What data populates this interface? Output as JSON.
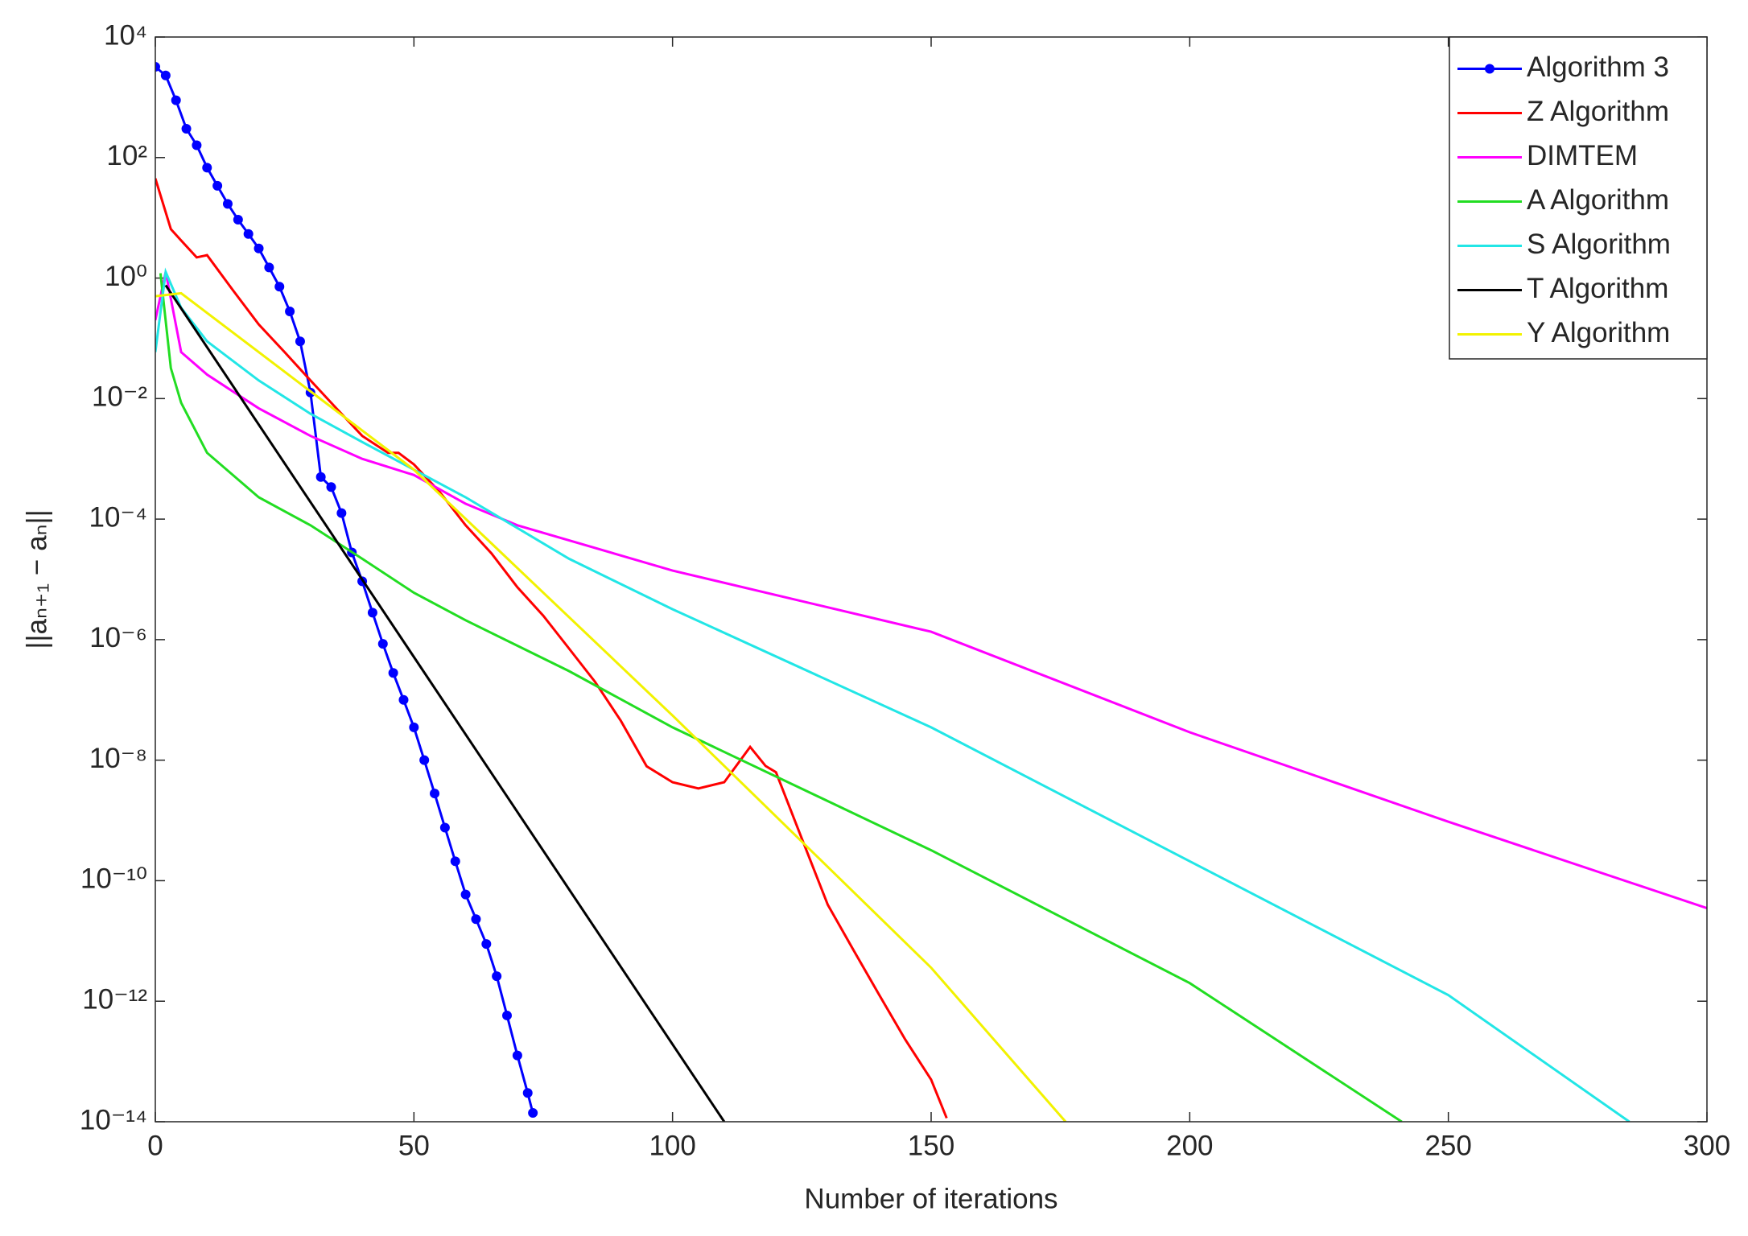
{
  "chart_data": {
    "type": "line",
    "xlabel": "Number of iterations",
    "ylabel": "||aₙ₊₁ − aₙ||",
    "xlim": [
      0,
      300
    ],
    "xticks": [
      0,
      50,
      100,
      150,
      200,
      250,
      300
    ],
    "ylim": [
      1e-14,
      10000.0
    ],
    "ylog": true,
    "yticks": [
      {
        "value": 10000.0,
        "label": "10⁴"
      },
      {
        "value": 100.0,
        "label": "10²"
      },
      {
        "value": 1,
        "label": "10⁰"
      },
      {
        "value": 0.01,
        "label": "10⁻²"
      },
      {
        "value": 0.0001,
        "label": "10⁻⁴"
      },
      {
        "value": 1e-06,
        "label": "10⁻⁶"
      },
      {
        "value": 1e-08,
        "label": "10⁻⁸"
      },
      {
        "value": 1e-10,
        "label": "10⁻¹⁰"
      },
      {
        "value": 1e-12,
        "label": "10⁻¹²"
      },
      {
        "value": 1e-14,
        "label": "10⁻¹⁴"
      }
    ],
    "legend": "northeast",
    "series": [
      {
        "name": "Algorithm 3",
        "color": "#0000ff",
        "marker": "circle",
        "x": [
          0,
          2,
          4,
          6,
          8,
          10,
          12,
          14,
          16,
          18,
          20,
          22,
          24,
          26,
          28,
          30,
          32,
          34,
          36,
          38,
          40,
          42,
          44,
          46,
          48,
          50,
          52,
          54,
          56,
          58,
          60,
          62,
          64,
          66,
          68,
          70,
          72,
          73
        ],
        "values": [
          3200.0,
          2300.0,
          890.0,
          300.0,
          160.0,
          68,
          34,
          17,
          9.3,
          5.4,
          3.1,
          1.5,
          0.72,
          0.28,
          0.089,
          0.0126,
          0.0005,
          0.00034,
          0.000126,
          2.8e-05,
          9.3e-06,
          2.8e-06,
          8.5e-07,
          2.8e-07,
          1e-07,
          3.5e-08,
          1e-08,
          2.8e-09,
          7.6e-10,
          2.1e-10,
          5.9e-11,
          2.3e-11,
          8.9e-12,
          2.6e-12,
          5.8e-13,
          1.26e-13,
          3e-14,
          1.4e-14
        ]
      },
      {
        "name": "Z Algorithm",
        "color": "#ff0000",
        "x": [
          0,
          3,
          5,
          8,
          10,
          15,
          20,
          25,
          30,
          35,
          40,
          45,
          47,
          50,
          55,
          60,
          65,
          70,
          75,
          80,
          85,
          90,
          95,
          100,
          105,
          110,
          115,
          118,
          120,
          125,
          130,
          135,
          140,
          145,
          150,
          153
        ],
        "values": [
          45,
          6.5,
          4.2,
          2.2,
          2.4,
          0.63,
          0.17,
          0.059,
          0.02,
          0.0069,
          0.0024,
          0.00126,
          0.00126,
          0.00081,
          0.00028,
          7.9e-05,
          2.7e-05,
          7.4e-06,
          2.5e-06,
          7.1e-07,
          2e-07,
          4.5e-08,
          7.9e-09,
          4.3e-09,
          3.4e-09,
          4.3e-09,
          1.66e-08,
          8e-09,
          6.3e-09,
          5e-10,
          4e-11,
          7e-12,
          1.26e-12,
          2.3e-13,
          5e-14,
          1.15e-14
        ]
      },
      {
        "name": "DIMTEM",
        "color": "#ff00ff",
        "x": [
          0,
          2,
          5,
          10,
          20,
          30,
          40,
          50,
          60,
          70,
          100,
          150,
          200,
          250,
          300
        ],
        "values": [
          0.2,
          1.26,
          0.059,
          0.025,
          0.0069,
          0.0024,
          0.001,
          0.00054,
          0.00018,
          7.9e-05,
          1.4e-05,
          1.35e-06,
          2.9e-08,
          9.5e-10,
          3.5e-11
        ]
      },
      {
        "name": "A Algorithm",
        "color": "#22dd22",
        "x": [
          1,
          3,
          5,
          10,
          20,
          30,
          40,
          50,
          60,
          80,
          100,
          150,
          200,
          241
        ],
        "values": [
          1.2,
          0.032,
          0.0085,
          0.00126,
          0.00023,
          7.9e-05,
          2.2e-05,
          6e-06,
          2.1e-06,
          3e-07,
          3.5e-08,
          3.2e-10,
          2e-12,
          1e-14
        ]
      },
      {
        "name": "S Algorithm",
        "color": "#22e6e6",
        "x": [
          0,
          2,
          5,
          10,
          20,
          30,
          40,
          50,
          60,
          80,
          100,
          150,
          200,
          250,
          285
        ],
        "values": [
          0.059,
          1.26,
          0.32,
          0.089,
          0.02,
          0.0056,
          0.0019,
          0.00066,
          0.00023,
          2.2e-05,
          3.2e-06,
          3.5e-08,
          2.1e-10,
          1.26e-12,
          1e-14
        ]
      },
      {
        "name": "T Algorithm",
        "color": "#000000",
        "x": [
          2,
          110
        ],
        "values": [
          0.76,
          1e-14
        ]
      },
      {
        "name": "Y Algorithm",
        "color": "#f2f200",
        "x": [
          0,
          5,
          20,
          50,
          100,
          150,
          176
        ],
        "values": [
          0.5,
          0.56,
          0.059,
          0.00066,
          5.5e-08,
          3.6e-12,
          1e-14
        ]
      }
    ]
  }
}
